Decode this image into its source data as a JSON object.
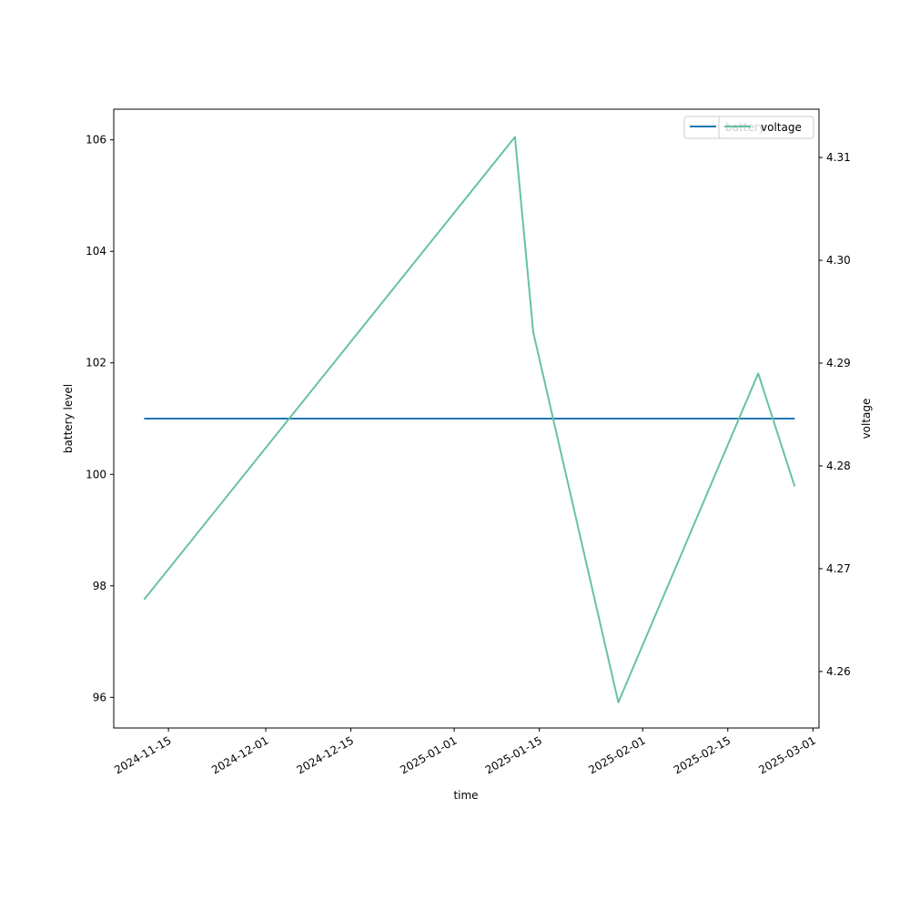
{
  "chart_data": {
    "type": "line",
    "xlabel": "time",
    "ylabel_left": "battery level",
    "ylabel_right": "voltage",
    "x_ticks": [
      "2024-11-15",
      "2024-12-01",
      "2024-12-15",
      "2025-01-01",
      "2025-01-15",
      "2025-02-01",
      "2025-02-15",
      "2025-03-01"
    ],
    "y_left_ticks": [
      96,
      98,
      100,
      102,
      104,
      106
    ],
    "y_left_lim": [
      95.45,
      106.55
    ],
    "y_right_ticks": [
      4.26,
      4.27,
      4.28,
      4.29,
      4.3,
      4.31
    ],
    "y_right_lim": [
      4.2545,
      4.3147
    ],
    "x_lim": [
      "2024-11-06",
      "2025-03-02"
    ],
    "series": [
      {
        "name": "battery",
        "axis": "left",
        "color": "#1f77b4",
        "points": [
          {
            "x": "2024-11-11",
            "y": 101
          },
          {
            "x": "2025-02-26",
            "y": 101
          }
        ]
      },
      {
        "name": "voltage",
        "axis": "right",
        "color": "#66c2a5",
        "points": [
          {
            "x": "2024-11-11",
            "y": 4.267
          },
          {
            "x": "2025-01-11",
            "y": 4.312
          },
          {
            "x": "2025-01-14",
            "y": 4.293
          },
          {
            "x": "2025-01-28",
            "y": 4.257
          },
          {
            "x": "2025-02-20",
            "y": 4.289
          },
          {
            "x": "2025-02-26",
            "y": 4.278
          }
        ]
      }
    ],
    "legend": {
      "placement": "top-right",
      "entries": [
        {
          "label": "battery",
          "color": "#1f77b4"
        },
        {
          "label": "voltage",
          "color": "#66c2a5"
        }
      ]
    }
  }
}
